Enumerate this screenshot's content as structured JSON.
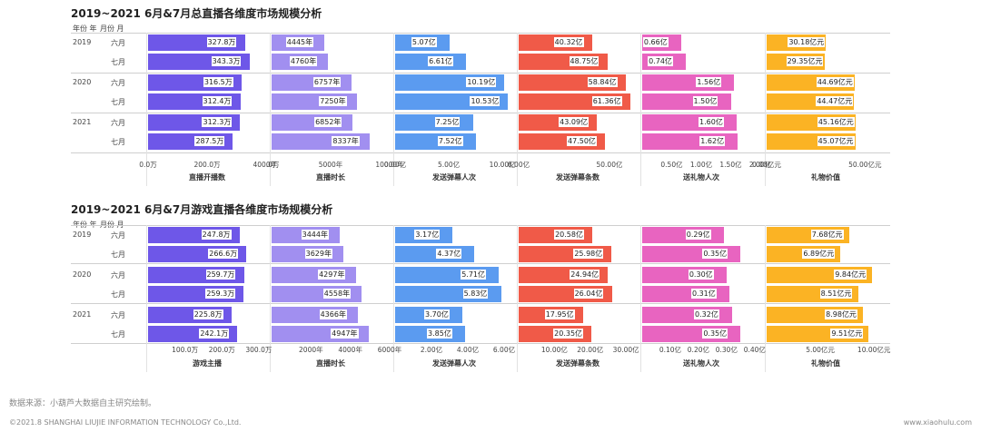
{
  "chart_data": [
    {
      "type": "bar",
      "title": "2019~2021 6月&7月总直播各维度市场规模分析",
      "header_year": "年份 年",
      "header_month": "月份 月",
      "years": [
        "2019",
        "2020",
        "2021"
      ],
      "months": [
        "六月",
        "七月"
      ],
      "metrics": [
        {
          "name": "直播开播数",
          "color": "#6e57e8",
          "values": [
            327.8,
            343.3,
            316.5,
            312.4,
            312.3,
            287.5
          ],
          "labels": [
            "327.8万",
            "343.3万",
            "316.5万",
            "312.4万",
            "312.3万",
            "287.5万"
          ],
          "xlim": [
            0,
            400
          ],
          "ticks": [
            {
              "v": 0,
              "t": "0.0万"
            },
            {
              "v": 200,
              "t": "200.0万"
            },
            {
              "v": 400,
              "t": "400.0万"
            }
          ]
        },
        {
          "name": "直播时长",
          "color": "#a18ff0",
          "values": [
            4445,
            4760,
            6757,
            7250,
            6852,
            8337
          ],
          "labels": [
            "4445年",
            "4760年",
            "6757年",
            "7250年",
            "6852年",
            "8337年"
          ],
          "xlim": [
            0,
            10000
          ],
          "ticks": [
            {
              "v": 0,
              "t": "0年"
            },
            {
              "v": 5000,
              "t": "5000年"
            },
            {
              "v": 10000,
              "t": "10000年"
            }
          ]
        },
        {
          "name": "发送弹幕人次",
          "color": "#5b9bf0",
          "values": [
            5.07,
            6.61,
            10.19,
            10.53,
            7.25,
            7.52
          ],
          "labels": [
            "5.07亿",
            "6.61亿",
            "10.19亿",
            "10.53亿",
            "7.25亿",
            "7.52亿"
          ],
          "xlim": [
            0,
            11
          ],
          "ticks": [
            {
              "v": 0,
              "t": "0.00亿"
            },
            {
              "v": 5,
              "t": "5.00亿"
            },
            {
              "v": 10,
              "t": "10.00亿"
            }
          ]
        },
        {
          "name": "发送弹幕条数",
          "color": "#f05a48",
          "values": [
            40.32,
            48.75,
            58.84,
            61.36,
            43.09,
            47.5
          ],
          "labels": [
            "40.32亿",
            "48.75亿",
            "58.84亿",
            "61.36亿",
            "43.09亿",
            "47.50亿"
          ],
          "xlim": [
            0,
            65
          ],
          "ticks": [
            {
              "v": 0,
              "t": "0.00亿"
            },
            {
              "v": 50,
              "t": "50.00亿"
            }
          ]
        },
        {
          "name": "送礼物人次",
          "color": "#e864c0",
          "values": [
            0.66,
            0.74,
            1.56,
            1.5,
            1.6,
            1.62
          ],
          "labels": [
            "0.66亿",
            "0.74亿",
            "1.56亿",
            "1.50亿",
            "1.60亿",
            "1.62亿"
          ],
          "xlim": [
            0,
            2.0
          ],
          "ticks": [
            {
              "v": 0.5,
              "t": "0.50亿"
            },
            {
              "v": 1.0,
              "t": "1.00亿"
            },
            {
              "v": 1.5,
              "t": "1.50亿"
            },
            {
              "v": 2.0,
              "t": "2.00亿"
            }
          ]
        },
        {
          "name": "礼物价值",
          "color": "#fbb324",
          "values": [
            30.18,
            29.35,
            44.69,
            44.47,
            45.16,
            45.07
          ],
          "labels": [
            "30.18亿元",
            "29.35亿元",
            "44.69亿元",
            "44.47亿元",
            "45.16亿元",
            "45.07亿元"
          ],
          "xlim": [
            0,
            60
          ],
          "ticks": [
            {
              "v": 0,
              "t": "0.00亿元"
            },
            {
              "v": 50,
              "t": "50.00亿元"
            }
          ]
        }
      ]
    },
    {
      "type": "bar",
      "title": "2019~2021 6月&7月游戏直播各维度市场规模分析",
      "header_year": "年份 年",
      "header_month": "月份 月",
      "years": [
        "2019",
        "2020",
        "2021"
      ],
      "months": [
        "六月",
        "七月"
      ],
      "metrics": [
        {
          "name": "游戏主播",
          "color": "#6e57e8",
          "values": [
            247.8,
            266.6,
            259.7,
            259.3,
            225.8,
            242.1
          ],
          "labels": [
            "247.8万",
            "266.6万",
            "259.7万",
            "259.3万",
            "225.8万",
            "242.1万"
          ],
          "xlim": [
            0,
            320
          ],
          "ticks": [
            {
              "v": 100,
              "t": "100.0万"
            },
            {
              "v": 200,
              "t": "200.0万"
            },
            {
              "v": 300,
              "t": "300.0万"
            }
          ]
        },
        {
          "name": "直播时长",
          "color": "#a18ff0",
          "values": [
            3444,
            3629,
            4297,
            4558,
            4366,
            4947
          ],
          "labels": [
            "3444年",
            "3629年",
            "4297年",
            "4558年",
            "4366年",
            "4947年"
          ],
          "xlim": [
            0,
            6000
          ],
          "ticks": [
            {
              "v": 2000,
              "t": "2000年"
            },
            {
              "v": 4000,
              "t": "4000年"
            },
            {
              "v": 6000,
              "t": "6000年"
            }
          ]
        },
        {
          "name": "发送弹幕人次",
          "color": "#5b9bf0",
          "values": [
            3.17,
            4.37,
            5.71,
            5.83,
            3.7,
            3.85
          ],
          "labels": [
            "3.17亿",
            "4.37亿",
            "5.71亿",
            "5.83亿",
            "3.70亿",
            "3.85亿"
          ],
          "xlim": [
            0,
            6.5
          ],
          "ticks": [
            {
              "v": 2,
              "t": "2.00亿"
            },
            {
              "v": 4,
              "t": "4.00亿"
            },
            {
              "v": 6,
              "t": "6.00亿"
            }
          ]
        },
        {
          "name": "发送弹幕条数",
          "color": "#f05a48",
          "values": [
            20.58,
            25.98,
            24.94,
            26.04,
            17.95,
            20.35
          ],
          "labels": [
            "20.58亿",
            "25.98亿",
            "24.94亿",
            "26.04亿",
            "17.95亿",
            "20.35亿"
          ],
          "xlim": [
            0,
            33
          ],
          "ticks": [
            {
              "v": 10,
              "t": "10.00亿"
            },
            {
              "v": 20,
              "t": "20.00亿"
            },
            {
              "v": 30,
              "t": "30.00亿"
            }
          ]
        },
        {
          "name": "送礼物人次",
          "color": "#e864c0",
          "values": [
            0.29,
            0.35,
            0.3,
            0.31,
            0.32,
            0.35
          ],
          "labels": [
            "0.29亿",
            "0.35亿",
            "0.30亿",
            "0.31亿",
            "0.32亿",
            "0.35亿"
          ],
          "xlim": [
            0,
            0.42
          ],
          "ticks": [
            {
              "v": 0.1,
              "t": "0.10亿"
            },
            {
              "v": 0.2,
              "t": "0.20亿"
            },
            {
              "v": 0.3,
              "t": "0.30亿"
            },
            {
              "v": 0.4,
              "t": "0.40亿"
            }
          ]
        },
        {
          "name": "礼物价值",
          "color": "#fbb324",
          "values": [
            7.68,
            6.89,
            9.84,
            8.51,
            8.98,
            9.51
          ],
          "labels": [
            "7.68亿元",
            "6.89亿元",
            "9.84亿元",
            "8.51亿元",
            "8.98亿元",
            "9.51亿元"
          ],
          "xlim": [
            0,
            11
          ],
          "ticks": [
            {
              "v": 5,
              "t": "5.00亿元"
            },
            {
              "v": 10,
              "t": "10.00亿元"
            }
          ]
        }
      ]
    }
  ],
  "footer": {
    "source": "数据来源：小葫芦大数据自主研究绘制。",
    "copyright": "©2021.8 SHANGHAI LIUJIE INFORMATION  TECHNOLOGY Co.,Ltd.",
    "website": "www.xiaohulu.com"
  }
}
